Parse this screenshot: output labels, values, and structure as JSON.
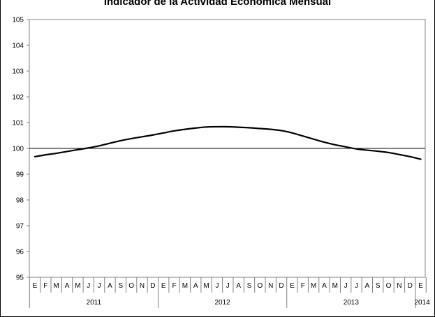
{
  "chart_data": {
    "type": "line",
    "title": "Indicador de la Actividad Económica Mensual",
    "xlabel": "",
    "ylabel": "",
    "ylim": [
      95,
      105
    ],
    "yticks": [
      95,
      96,
      97,
      98,
      99,
      100,
      101,
      102,
      103,
      104,
      105
    ],
    "reference_line": 100,
    "grid": false,
    "legend": "none",
    "month_labels": [
      "E",
      "F",
      "M",
      "A",
      "M",
      "J",
      "J",
      "A",
      "S",
      "O",
      "N",
      "D",
      "E",
      "F",
      "M",
      "A",
      "M",
      "J",
      "J",
      "A",
      "S",
      "O",
      "N",
      "D",
      "E",
      "F",
      "M",
      "A",
      "M",
      "J",
      "J",
      "A",
      "S",
      "O",
      "N",
      "D",
      "E"
    ],
    "year_labels": [
      "2011",
      "2012",
      "2013",
      "2014"
    ],
    "series": [
      {
        "color": "#000000",
        "values": [
          99.68,
          99.75,
          99.81,
          99.88,
          99.95,
          100.02,
          100.1,
          100.2,
          100.3,
          100.38,
          100.45,
          100.52,
          100.6,
          100.68,
          100.74,
          100.79,
          100.83,
          100.84,
          100.84,
          100.82,
          100.8,
          100.77,
          100.74,
          100.69,
          100.6,
          100.48,
          100.36,
          100.24,
          100.14,
          100.06,
          99.98,
          99.93,
          99.89,
          99.84,
          99.76,
          99.68,
          99.58
        ]
      }
    ]
  }
}
